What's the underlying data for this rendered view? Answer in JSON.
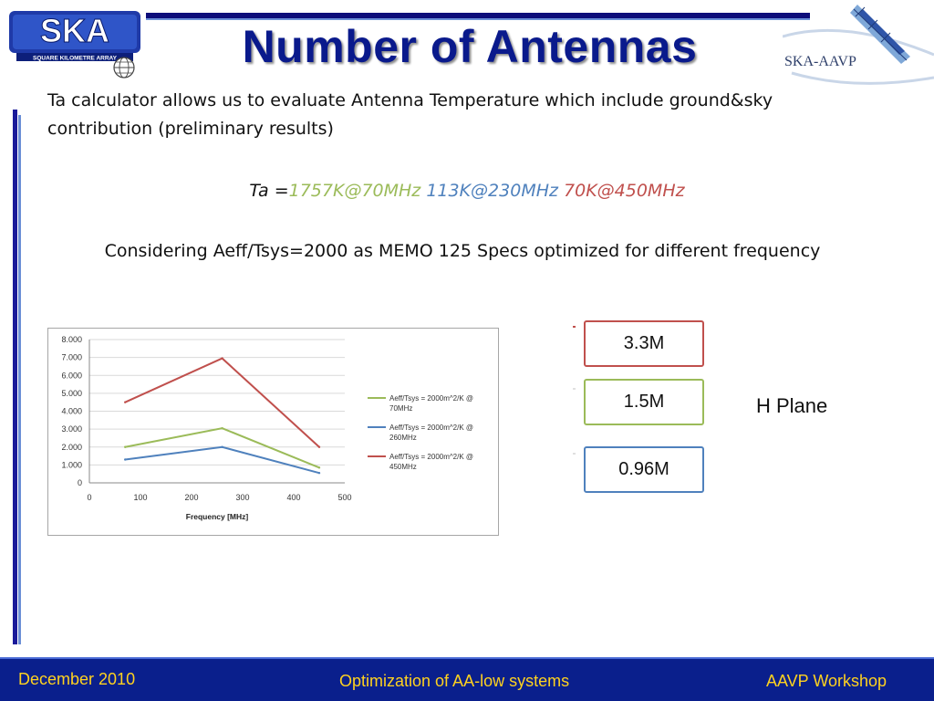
{
  "header": {
    "title": "Number of Antennas",
    "ska_logo_text": "SKA",
    "ska_logo_subtext": "SQUARE KILOMETRE ARRAY",
    "aavp_logo_text": "SKA-AAVP"
  },
  "intro": {
    "text": "Ta calculator allows us to evaluate Antenna Temperature which include ground&sky contribution (preliminary results)"
  },
  "ta": {
    "prefix": "Ta =",
    "v70": "1757K@70MHz",
    "v230": "113K@230MHz",
    "v450": "70K@450MHz",
    "colors": {
      "v70": "#9bbb59",
      "v230": "#4f81bd",
      "v450": "#c0504d"
    }
  },
  "considering": "Considering Aeff/Tsys=2000 as MEMO 125 Specs optimized for different frequency",
  "boxes": {
    "red": "3.3M",
    "green": "1.5M",
    "blue": "0.96M"
  },
  "h_plane": "H Plane",
  "footer": {
    "date": "December 2010",
    "center": "Optimization of AA-low systems",
    "right": "AAVP Workshop"
  },
  "chart_data": {
    "type": "line",
    "xlabel": "Frequency [MHz]",
    "ylabel": "",
    "xlim": [
      0,
      500
    ],
    "ylim": [
      0,
      8000
    ],
    "x_ticks": [
      0,
      100,
      200,
      300,
      400,
      500
    ],
    "x_tick_labels": [
      "0",
      "100",
      "200",
      "300",
      "400",
      "500"
    ],
    "y_ticks": [
      0,
      1000,
      2000,
      3000,
      4000,
      5000,
      6000,
      7000,
      8000
    ],
    "y_tick_labels": [
      "0",
      "1.000",
      "2.000",
      "3.000",
      "4.000",
      "5.000",
      "6.000",
      "7.000",
      "8.000"
    ],
    "grid": true,
    "legend_position": "right",
    "series": [
      {
        "name": "Aeff/Tsys = 2000m^2/K @ 70MHz",
        "color": "#9bbb59",
        "x": [
          70,
          260,
          450
        ],
        "y": [
          2000,
          3050,
          850
        ]
      },
      {
        "name": "Aeff/Tsys = 2000m^2/K @ 260MHz",
        "color": "#4f81bd",
        "x": [
          70,
          260,
          450
        ],
        "y": [
          1300,
          2000,
          550
        ]
      },
      {
        "name": "Aeff/Tsys = 2000m^2/K @ 450MHz",
        "color": "#c0504d",
        "x": [
          70,
          260,
          450
        ],
        "y": [
          4500,
          6950,
          2000
        ]
      }
    ]
  }
}
